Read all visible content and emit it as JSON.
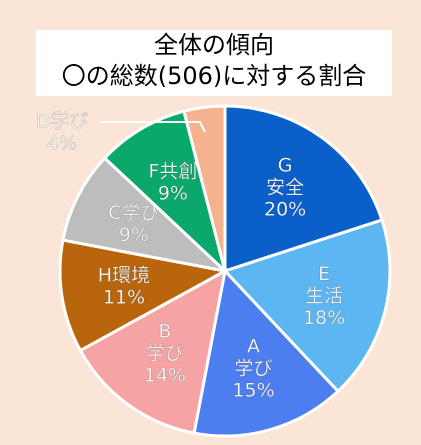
{
  "chart_data": {
    "type": "pie",
    "title": [
      "全体の傾向",
      "〇の総数(506)に対する割合"
    ],
    "categories": [
      [
        "G",
        "安全"
      ],
      [
        "E",
        "生活"
      ],
      [
        "A",
        "学び"
      ],
      [
        "B",
        "学び"
      ],
      [
        "H環境"
      ],
      [
        "C学び"
      ],
      [
        "F共創"
      ],
      [
        "D学び"
      ]
    ],
    "values": [
      20,
      18,
      15,
      14,
      11,
      9,
      9,
      4
    ],
    "value_labels": [
      "20%",
      "18%",
      "15%",
      "14%",
      "11%",
      "9%",
      "9%",
      "4%"
    ],
    "colors": [
      "#0a5fc8",
      "#5bb6f2",
      "#4d7ef0",
      "#f5a3a3",
      "#b8650c",
      "#bdbdbd",
      "#0aa96b",
      "#f5b28e"
    ]
  }
}
